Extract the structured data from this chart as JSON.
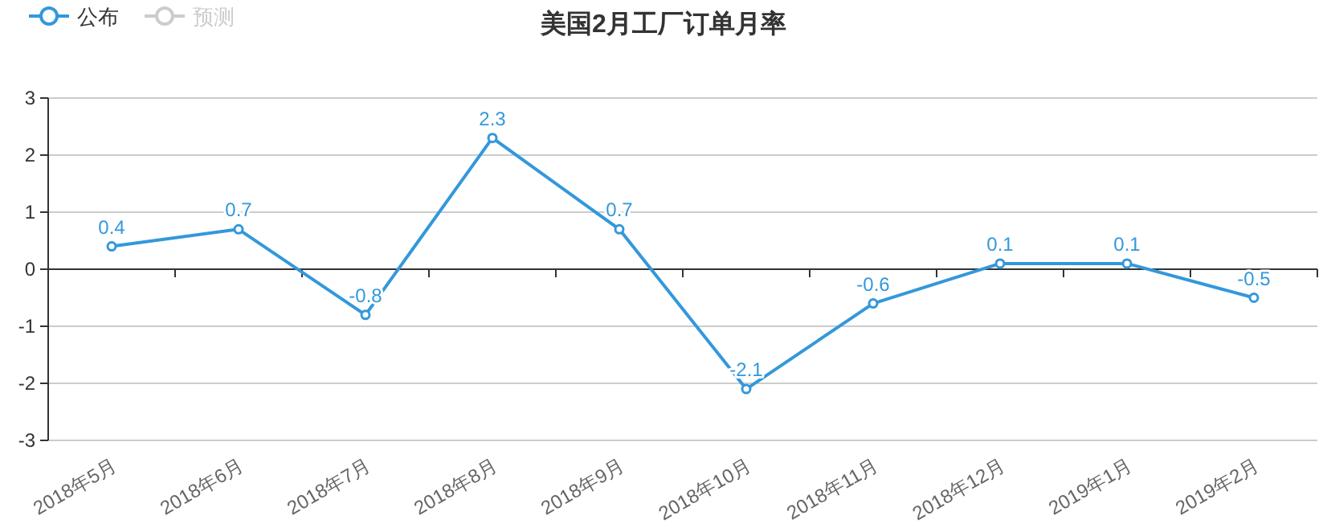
{
  "chart_data": {
    "type": "line",
    "title": "美国2月工厂订单月率",
    "categories": [
      "2018年5月",
      "2018年6月",
      "2018年7月",
      "2018年8月",
      "2018年9月",
      "2018年10月",
      "2018年11月",
      "2018年12月",
      "2019年1月",
      "2019年2月"
    ],
    "series": [
      {
        "name": "公布",
        "color": "#3398db",
        "values": [
          0.4,
          0.7,
          -0.8,
          2.3,
          0.7,
          -2.1,
          -0.6,
          0.1,
          0.1,
          -0.5
        ]
      },
      {
        "name": "预测",
        "color": "#cccccc",
        "values": [
          null,
          null,
          null,
          null,
          null,
          null,
          null,
          null,
          null,
          null
        ]
      }
    ],
    "ylim": [
      -3,
      3
    ],
    "yticks": [
      -3,
      -2,
      -1,
      0,
      1,
      2,
      3
    ],
    "grid": "y",
    "legend": "top left",
    "marker": "circle",
    "data_labels": true
  }
}
